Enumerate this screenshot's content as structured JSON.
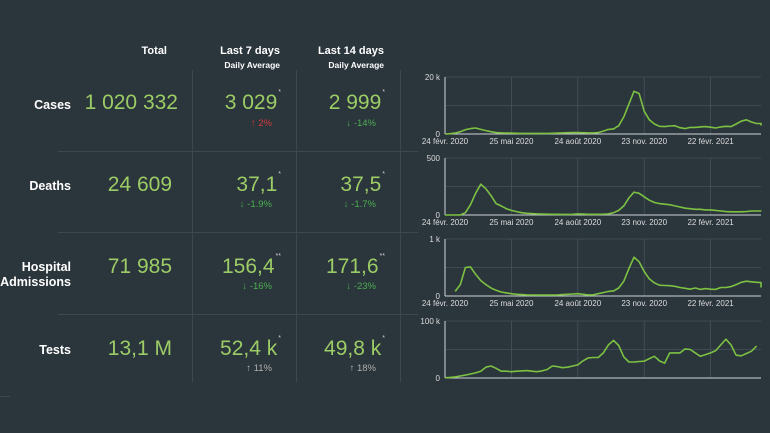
{
  "headers": [
    {
      "title": "Total",
      "subtitle": ""
    },
    {
      "title": "Last 7 days",
      "subtitle": "Daily Average"
    },
    {
      "title": "Last 14 days",
      "subtitle": "Daily Average"
    }
  ],
  "rows": [
    {
      "label": "Cases",
      "total": "1 020 332",
      "d7": {
        "value": "3 029",
        "mark": "*",
        "arrow": "↑",
        "change": "2%",
        "trend": "up-red"
      },
      "d14": {
        "value": "2 999",
        "mark": "*",
        "arrow": "↓",
        "change": "-14%",
        "trend": "down-green"
      }
    },
    {
      "label": "Deaths",
      "total": "24 609",
      "d7": {
        "value": "37,1",
        "mark": "*",
        "arrow": "↓",
        "change": "-1.9%",
        "trend": "down-green"
      },
      "d14": {
        "value": "37,5",
        "mark": "*",
        "arrow": "↓",
        "change": "-1.7%",
        "trend": "down-green"
      }
    },
    {
      "label": "Hospital Admissions",
      "total": "71 985",
      "d7": {
        "value": "156,4",
        "mark": "**",
        "arrow": "↓",
        "change": "-16%",
        "trend": "down-green"
      },
      "d14": {
        "value": "171,6",
        "mark": "**",
        "arrow": "↓",
        "change": "-23%",
        "trend": "down-green"
      }
    },
    {
      "label": "Tests",
      "total": "13,1 M",
      "d7": {
        "value": "52,4 k",
        "mark": "*",
        "arrow": "↑",
        "change": "11%",
        "trend": "up-grey"
      },
      "d14": {
        "value": "49,8 k",
        "mark": "*",
        "arrow": "↑",
        "change": "18%",
        "trend": "up-grey"
      }
    }
  ],
  "colors": {
    "line": "#7cc142",
    "value": "#9ccc65",
    "up_red": "#d43c3c",
    "down_green": "#4caf50",
    "background": "#2b353c"
  },
  "chart_data": [
    {
      "type": "line",
      "name": "cases",
      "title": "",
      "xlabel": "",
      "ylabel": "",
      "ylim": [
        0,
        20000
      ],
      "yticks": [
        "0",
        "20 k"
      ],
      "xticks": [
        "24 févr. 2020",
        "25 mai 2020",
        "24 août 2020",
        "23 nov. 2020",
        "22 févr. 2021"
      ],
      "x_start": "2020-02-24",
      "x_step_weeks": 1,
      "grid": true,
      "values": [
        0,
        100,
        300,
        800,
        1500,
        1900,
        2100,
        1600,
        1200,
        800,
        500,
        400,
        300,
        300,
        250,
        200,
        200,
        200,
        200,
        200,
        200,
        250,
        300,
        400,
        450,
        500,
        500,
        450,
        400,
        400,
        500,
        1000,
        1600,
        1800,
        2900,
        6000,
        10500,
        15000,
        14200,
        8000,
        5000,
        3500,
        2700,
        2600,
        2800,
        2900,
        2200,
        1900,
        2300,
        2300,
        2500,
        2600,
        2400,
        2100,
        2500,
        2700,
        2600,
        3500,
        4500,
        5000,
        4200,
        3700,
        3700,
        3600,
        3200,
        3500
      ]
    },
    {
      "type": "line",
      "name": "deaths",
      "title": "",
      "xlabel": "",
      "ylabel": "",
      "ylim": [
        0,
        500
      ],
      "yticks": [
        "0",
        "500"
      ],
      "xticks": [
        "24 févr. 2020",
        "25 mai 2020",
        "24 août 2020",
        "23 nov. 2020",
        "22 févr. 2021"
      ],
      "x_start": "2020-02-24",
      "x_step_weeks": 1,
      "grid": true,
      "values": [
        0,
        0,
        0,
        0,
        20,
        90,
        190,
        270,
        230,
        170,
        100,
        80,
        55,
        40,
        30,
        20,
        15,
        12,
        10,
        8,
        7,
        6,
        6,
        5,
        5,
        6,
        10,
        8,
        6,
        6,
        6,
        7,
        10,
        20,
        40,
        80,
        150,
        200,
        190,
        160,
        130,
        110,
        100,
        95,
        90,
        80,
        70,
        60,
        55,
        50,
        50,
        45,
        45,
        40,
        35,
        30,
        28,
        28,
        28,
        30,
        35,
        35,
        35,
        35,
        33,
        33
      ]
    },
    {
      "type": "line",
      "name": "hospital-admissions",
      "title": "",
      "xlabel": "",
      "ylabel": "",
      "ylim": [
        0,
        1000
      ],
      "yticks": [
        "0",
        "1 k"
      ],
      "xticks": [
        "24 févr. 2020",
        "25 mai 2020",
        "24 août 2020",
        "23 nov. 2020",
        "22 févr. 2021"
      ],
      "x_start": "2020-03-09",
      "x_step_weeks": 1,
      "grid": true,
      "values": [
        80,
        200,
        500,
        510,
        380,
        270,
        200,
        140,
        100,
        70,
        55,
        40,
        30,
        25,
        20,
        18,
        15,
        15,
        15,
        15,
        18,
        25,
        30,
        35,
        40,
        30,
        20,
        20,
        40,
        60,
        80,
        90,
        140,
        260,
        480,
        680,
        600,
        430,
        300,
        230,
        190,
        185,
        180,
        170,
        150,
        135,
        120,
        140,
        115,
        130,
        120,
        115,
        150,
        150,
        165,
        200,
        240,
        260,
        250,
        240,
        235,
        200,
        170,
        150
      ]
    },
    {
      "type": "line",
      "name": "tests",
      "title": "",
      "xlabel": "",
      "ylabel": "",
      "ylim": [
        0,
        100000
      ],
      "yticks": [
        "0",
        "100 k"
      ],
      "xticks": [],
      "x_start": "2020-02-24",
      "x_step_weeks": 1,
      "grid": true,
      "values": [
        500,
        1000,
        2000,
        3500,
        5000,
        7000,
        9000,
        12000,
        19000,
        21000,
        17000,
        12000,
        12000,
        11000,
        12000,
        12500,
        13000,
        12000,
        11000,
        12500,
        15000,
        21000,
        20000,
        18000,
        19000,
        21000,
        23000,
        30000,
        35000,
        36000,
        36000,
        44000,
        58000,
        66000,
        57000,
        37000,
        28000,
        28000,
        29000,
        29500,
        34000,
        38000,
        30000,
        26000,
        44000,
        44000,
        44000,
        51000,
        50000,
        44000,
        38000,
        41000,
        44000,
        48000,
        58000,
        68000,
        58000,
        40000,
        39000,
        43000,
        47000,
        56000
      ]
    }
  ]
}
